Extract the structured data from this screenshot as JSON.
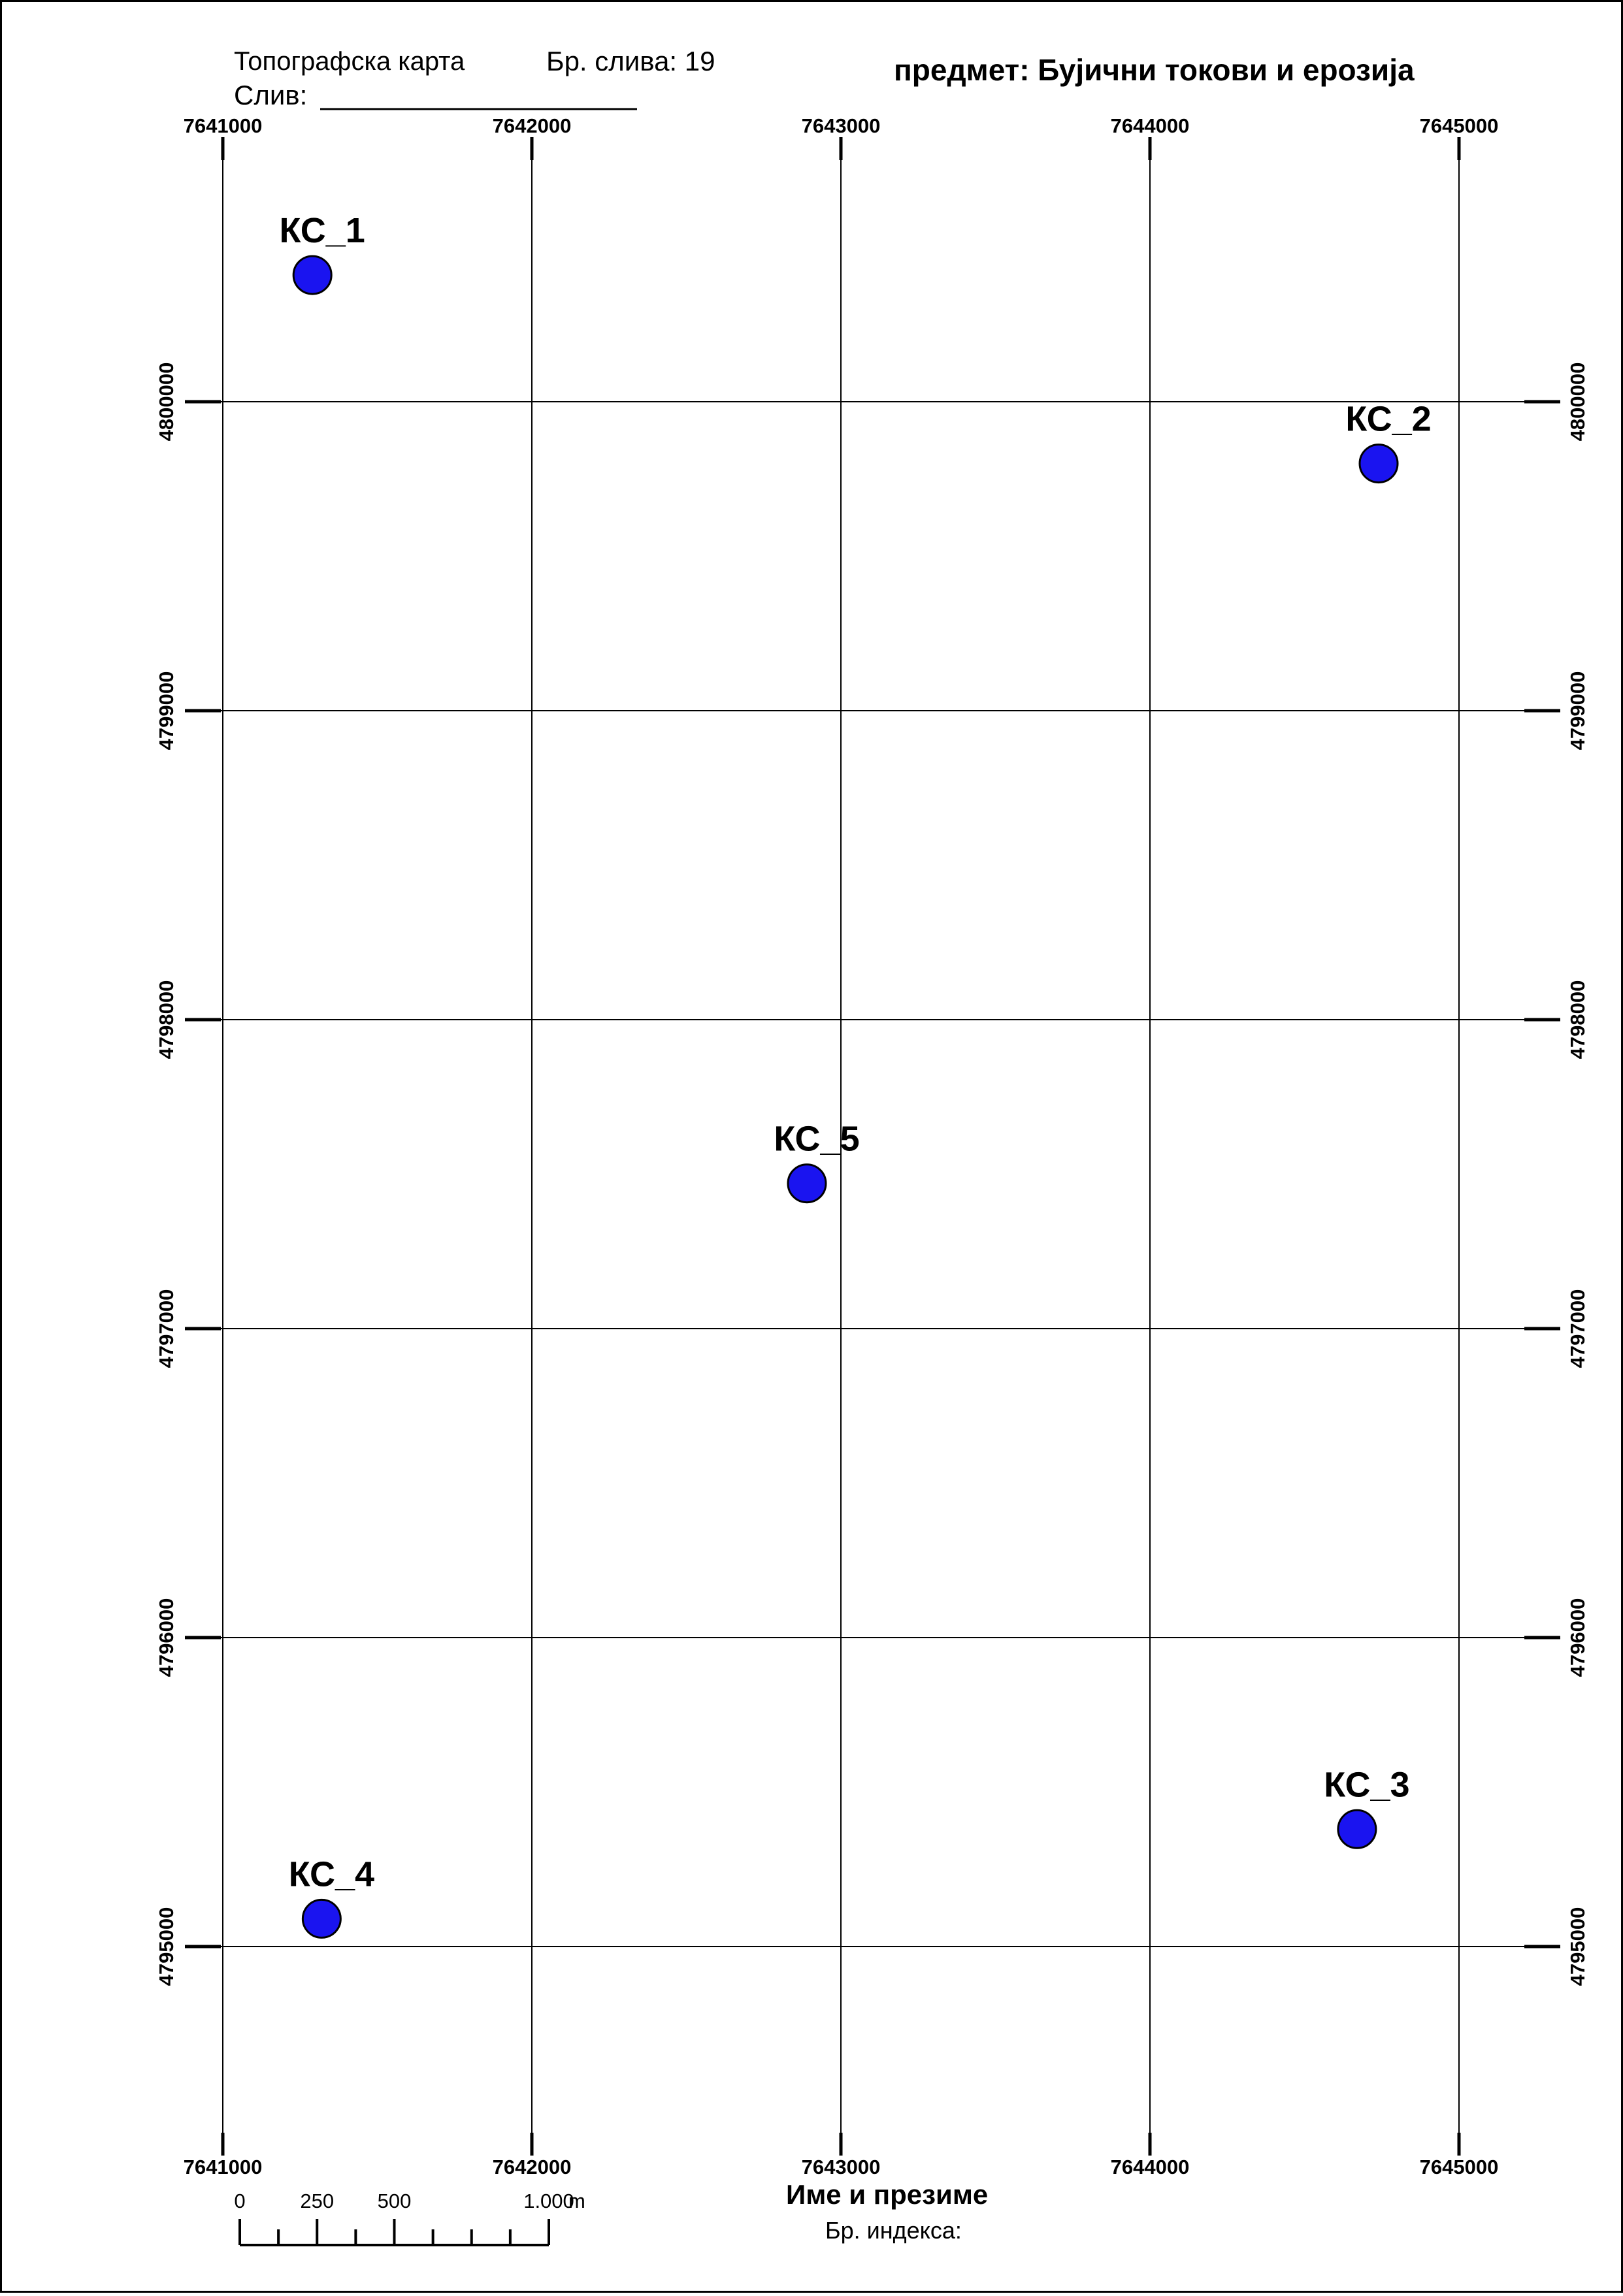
{
  "header": {
    "map_type": "Топографска карта",
    "catchment_no": "Бр. слива: 19",
    "catchment_label": "Слив:",
    "subject": "предмет: Бујични токови и ерозија"
  },
  "grid": {
    "easting_ticks": [
      "7641000",
      "7642000",
      "7643000",
      "7644000",
      "7645000"
    ],
    "northing_ticks": [
      "4800000",
      "4799000",
      "4798000",
      "4797000",
      "4796000",
      "4795000"
    ]
  },
  "points": [
    {
      "label": "КС_1",
      "easting": 7641290,
      "northing": 4800410
    },
    {
      "label": "КС_2",
      "easting": 7644740,
      "northing": 4799800
    },
    {
      "label": "КС_3",
      "easting": 7644670,
      "northing": 4795380
    },
    {
      "label": "КС_4",
      "easting": 7641320,
      "northing": 4795090
    },
    {
      "label": "КС_5",
      "easting": 7642890,
      "northing": 4797470
    }
  ],
  "colors": {
    "point_fill": "#1a14f0",
    "point_stroke": "#000000",
    "grid_line": "#000000"
  },
  "scalebar": {
    "labels": [
      "0",
      "250",
      "500",
      "1.000"
    ],
    "unit": "m"
  },
  "footer": {
    "name_label": "Име и презиме",
    "index_label": "Бр. индекса:"
  }
}
